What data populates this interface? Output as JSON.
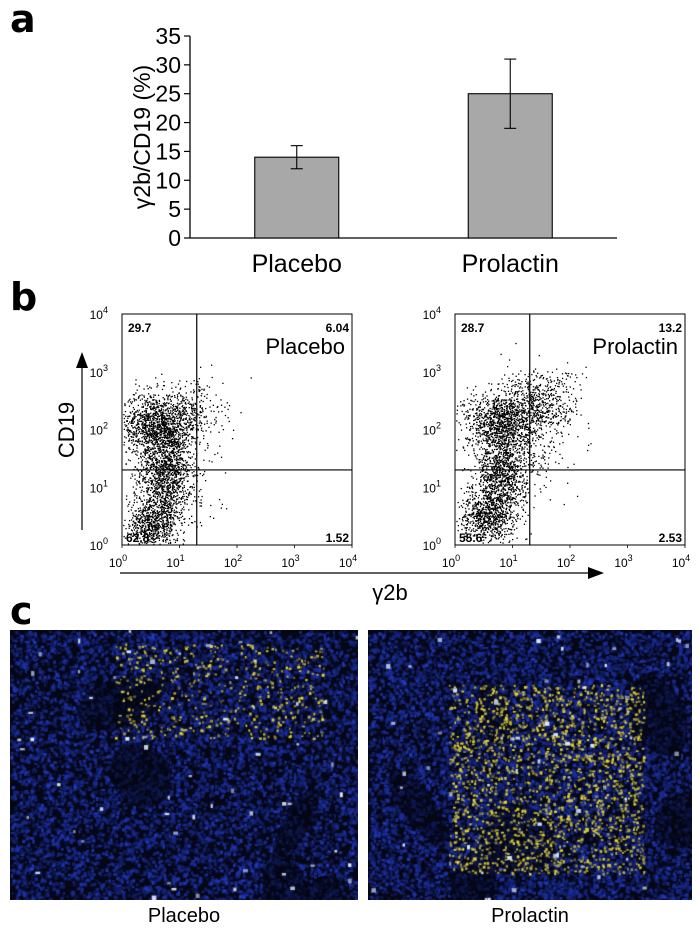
{
  "panel_labels": {
    "a": "a",
    "b": "b",
    "c": "c"
  },
  "chart_data": [
    {
      "type": "bar",
      "categories": [
        "Placebo",
        "Prolactin"
      ],
      "values": [
        14,
        25
      ],
      "error": [
        2,
        6
      ],
      "ylabel": "γ2b/CD19 (%)",
      "ylim": [
        0,
        35
      ],
      "yticks": [
        "0",
        "5",
        "10",
        "15",
        "20",
        "25",
        "30",
        "35"
      ],
      "bar_color": "#a8a8a8"
    },
    {
      "type": "scatter",
      "plots": [
        {
          "label": "Placebo",
          "quadrants": {
            "top_left": "29.7",
            "top_right": "6.04",
            "bottom_left": "62.8",
            "bottom_right": "1.52"
          }
        },
        {
          "label": "Prolactin",
          "quadrants": {
            "top_left": "28.7",
            "top_right": "13.2",
            "bottom_left": "55.6",
            "bottom_right": "2.53"
          }
        }
      ],
      "xlabel": "γ2b",
      "ylabel": "CD19",
      "tick_base": "10",
      "tick_exponents": [
        "0",
        "1",
        "2",
        "3",
        "4"
      ],
      "gate_x": 1.3,
      "gate_y": 1.3
    }
  ],
  "micrographs": [
    {
      "caption": "Placebo",
      "blue": "#1f3fb0",
      "yellow": "#e8d83a",
      "yellow_density": 0.25
    },
    {
      "caption": "Prolactin",
      "blue": "#1f3fb0",
      "yellow": "#e8d83a",
      "yellow_density": 1
    }
  ]
}
